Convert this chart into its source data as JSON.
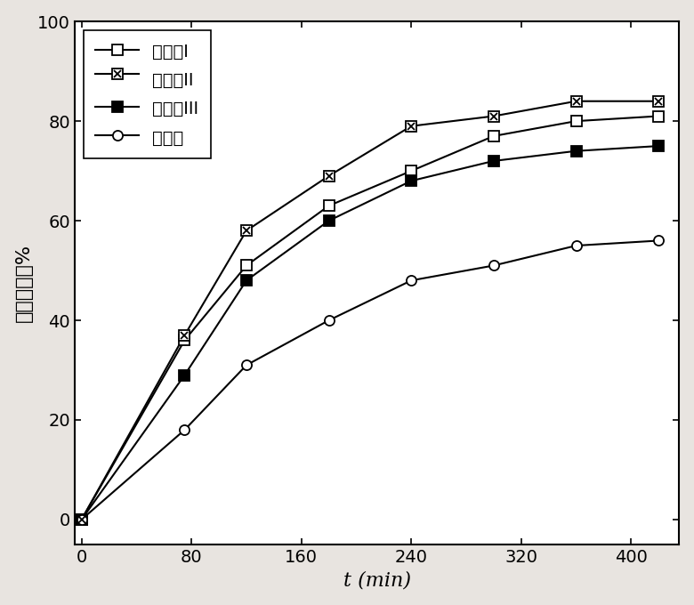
{
  "series": [
    {
      "label": "整理剂I",
      "x": [
        0,
        75,
        120,
        180,
        240,
        300,
        360,
        420
      ],
      "y": [
        0,
        36,
        51,
        63,
        70,
        77,
        80,
        81
      ],
      "marker": "s",
      "marker_fill": "white",
      "marker_edge": "black",
      "linestyle": "-",
      "color": "black",
      "markersize": 8,
      "hatch": null
    },
    {
      "label": "整理剂II",
      "x": [
        0,
        75,
        120,
        180,
        240,
        300,
        360,
        420
      ],
      "y": [
        0,
        37,
        58,
        69,
        79,
        81,
        84,
        84
      ],
      "marker": "s",
      "marker_fill": "white",
      "marker_edge": "black",
      "linestyle": "-",
      "color": "black",
      "markersize": 8,
      "hatch": "x"
    },
    {
      "label": "整理剂III",
      "x": [
        0,
        75,
        120,
        180,
        240,
        300,
        360,
        420
      ],
      "y": [
        0,
        29,
        48,
        60,
        68,
        72,
        74,
        75
      ],
      "marker": "s",
      "marker_fill": "black",
      "marker_edge": "black",
      "linestyle": "-",
      "color": "black",
      "markersize": 8,
      "hatch": null
    },
    {
      "label": "对比例",
      "x": [
        0,
        75,
        120,
        180,
        240,
        300,
        360,
        420
      ],
      "y": [
        0,
        18,
        31,
        40,
        48,
        51,
        55,
        56
      ],
      "marker": "o",
      "marker_fill": "white",
      "marker_edge": "black",
      "linestyle": "-",
      "color": "black",
      "markersize": 8,
      "hatch": null
    }
  ],
  "xlabel": "t (min)",
  "ylabel": "甲醛去除率%",
  "xlim": [
    -5,
    435
  ],
  "ylim": [
    -5,
    100
  ],
  "xticks": [
    0,
    80,
    160,
    240,
    320,
    400
  ],
  "yticks": [
    0,
    20,
    40,
    60,
    80,
    100
  ],
  "background_color": "#e8e4e0",
  "plot_bg_color": "white",
  "label_fontsize": 16,
  "tick_fontsize": 14,
  "legend_fontsize": 14
}
